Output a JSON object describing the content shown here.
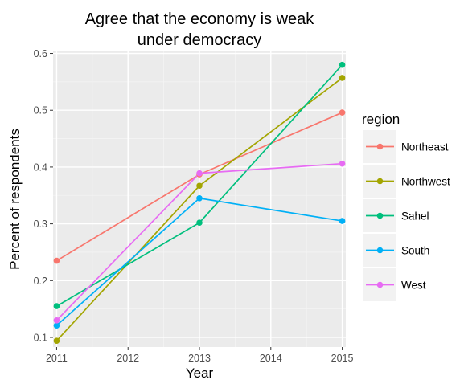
{
  "chart_data": {
    "type": "line",
    "title_lines": [
      "Agree that the economy is weak",
      "under democracy"
    ],
    "xlabel": "Year",
    "ylabel": "Percent of respondents",
    "x": [
      2011,
      2013,
      2015
    ],
    "xlim": [
      2010.95,
      2015.05
    ],
    "ylim": [
      0.083,
      0.605
    ],
    "x_ticks": [
      2011,
      2012,
      2013,
      2014,
      2015
    ],
    "y_ticks": [
      0.1,
      0.2,
      0.3,
      0.4,
      0.5,
      0.6
    ],
    "x_tick_labels": [
      "2011",
      "2012",
      "2013",
      "2014",
      "2015"
    ],
    "y_tick_labels": [
      "0.1",
      "0.2",
      "0.3",
      "0.4",
      "0.5",
      "0.6"
    ],
    "grid": true,
    "legend_title": "region",
    "legend_position": "right",
    "series": [
      {
        "name": "Northeast",
        "color": "#F8766D",
        "values": [
          0.235,
          0.387,
          0.496
        ]
      },
      {
        "name": "Northwest",
        "color": "#A3A500",
        "values": [
          0.094,
          0.367,
          0.557
        ]
      },
      {
        "name": "Sahel",
        "color": "#00BF7D",
        "values": [
          0.155,
          0.302,
          0.58
        ]
      },
      {
        "name": "South",
        "color": "#00B0F6",
        "values": [
          0.121,
          0.345,
          0.305
        ]
      },
      {
        "name": "West",
        "color": "#E76BF3",
        "values": [
          0.13,
          0.389,
          0.406
        ]
      }
    ]
  }
}
